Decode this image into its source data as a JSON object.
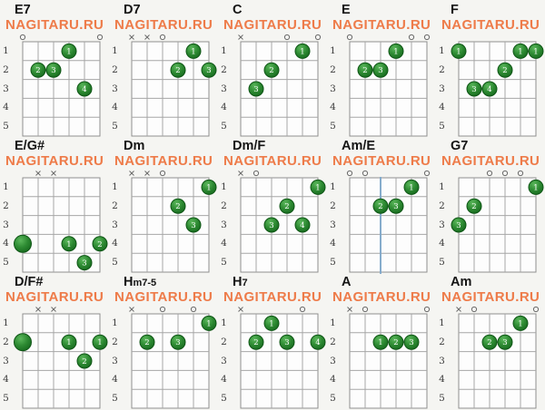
{
  "site": {
    "logo_text": "NAGITARU.RU"
  },
  "colors": {
    "logo_orange": "#ee7b49",
    "title_black": "#141414",
    "dot_green_light": "#5cb85c",
    "dot_green": "#2e8b33",
    "dot_green_dark": "#14661c",
    "dot_border": "#0e5515",
    "grid_line": "#a6a6a6",
    "grid_border": "#8f8f8f",
    "grid_bg": "#fdfdfd",
    "marker_gray": "#6a6a6a",
    "blue_string_line": "#7fa8cc",
    "page_bg": "#f5f5f2"
  },
  "board": {
    "strings": 6,
    "frets": 5,
    "fret_labels": [
      "1",
      "2",
      "3",
      "4",
      "5"
    ]
  },
  "chords": [
    {
      "name_main": "E7",
      "name_sub": "",
      "markers": [
        {
          "string": 6,
          "type": "o"
        },
        {
          "string": 1,
          "type": "o"
        }
      ],
      "dots": [
        {
          "string": 3,
          "fret": 1,
          "finger": "1"
        },
        {
          "string": 5,
          "fret": 2,
          "finger": "2"
        },
        {
          "string": 4,
          "fret": 2,
          "finger": "3"
        },
        {
          "string": 2,
          "fret": 3,
          "finger": "4"
        }
      ],
      "blue_line_string": null
    },
    {
      "name_main": "D7",
      "name_sub": "",
      "markers": [
        {
          "string": 6,
          "type": "x"
        },
        {
          "string": 5,
          "type": "x"
        },
        {
          "string": 4,
          "type": "o"
        }
      ],
      "dots": [
        {
          "string": 2,
          "fret": 1,
          "finger": "1"
        },
        {
          "string": 3,
          "fret": 2,
          "finger": "2"
        },
        {
          "string": 1,
          "fret": 2,
          "finger": "3"
        }
      ],
      "blue_line_string": null
    },
    {
      "name_main": "C",
      "name_sub": "",
      "markers": [
        {
          "string": 6,
          "type": "x"
        },
        {
          "string": 3,
          "type": "o"
        },
        {
          "string": 1,
          "type": "o"
        }
      ],
      "dots": [
        {
          "string": 2,
          "fret": 1,
          "finger": "1"
        },
        {
          "string": 4,
          "fret": 2,
          "finger": "2"
        },
        {
          "string": 5,
          "fret": 3,
          "finger": "3"
        }
      ],
      "blue_line_string": null
    },
    {
      "name_main": "E",
      "name_sub": "",
      "markers": [
        {
          "string": 6,
          "type": "o"
        },
        {
          "string": 2,
          "type": "o"
        },
        {
          "string": 1,
          "type": "o"
        }
      ],
      "dots": [
        {
          "string": 3,
          "fret": 1,
          "finger": "1"
        },
        {
          "string": 5,
          "fret": 2,
          "finger": "2"
        },
        {
          "string": 4,
          "fret": 2,
          "finger": "3"
        }
      ],
      "blue_line_string": null
    },
    {
      "name_main": "F",
      "name_sub": "",
      "markers": [],
      "dots": [
        {
          "string": 6,
          "fret": 1,
          "finger": "1"
        },
        {
          "string": 2,
          "fret": 1,
          "finger": "1"
        },
        {
          "string": 1,
          "fret": 1,
          "finger": "1"
        },
        {
          "string": 3,
          "fret": 2,
          "finger": "2"
        },
        {
          "string": 5,
          "fret": 3,
          "finger": "3"
        },
        {
          "string": 4,
          "fret": 3,
          "finger": "4"
        }
      ],
      "blue_line_string": null
    },
    {
      "name_main": "E/G#",
      "name_sub": "",
      "markers": [
        {
          "string": 5,
          "type": "x"
        },
        {
          "string": 4,
          "type": "x"
        }
      ],
      "dots": [
        {
          "string": 6,
          "fret": 4,
          "finger": ""
        },
        {
          "string": 3,
          "fret": 4,
          "finger": "1"
        },
        {
          "string": 1,
          "fret": 4,
          "finger": "2"
        },
        {
          "string": 2,
          "fret": 5,
          "finger": "3"
        }
      ],
      "blue_line_string": null
    },
    {
      "name_main": "Dm",
      "name_sub": "",
      "markers": [
        {
          "string": 6,
          "type": "x"
        },
        {
          "string": 5,
          "type": "x"
        },
        {
          "string": 4,
          "type": "o"
        }
      ],
      "dots": [
        {
          "string": 1,
          "fret": 1,
          "finger": "1"
        },
        {
          "string": 3,
          "fret": 2,
          "finger": "2"
        },
        {
          "string": 2,
          "fret": 3,
          "finger": "3"
        }
      ],
      "blue_line_string": null
    },
    {
      "name_main": "Dm/F",
      "name_sub": "",
      "markers": [
        {
          "string": 6,
          "type": "x"
        },
        {
          "string": 5,
          "type": "o"
        }
      ],
      "dots": [
        {
          "string": 1,
          "fret": 1,
          "finger": "1"
        },
        {
          "string": 3,
          "fret": 2,
          "finger": "2"
        },
        {
          "string": 4,
          "fret": 3,
          "finger": "3"
        },
        {
          "string": 2,
          "fret": 3,
          "finger": "4"
        }
      ],
      "blue_line_string": null
    },
    {
      "name_main": "Am/E",
      "name_sub": "",
      "markers": [
        {
          "string": 6,
          "type": "o"
        },
        {
          "string": 5,
          "type": "o"
        },
        {
          "string": 1,
          "type": "o"
        }
      ],
      "dots": [
        {
          "string": 2,
          "fret": 1,
          "finger": "1"
        },
        {
          "string": 4,
          "fret": 2,
          "finger": "2"
        },
        {
          "string": 3,
          "fret": 2,
          "finger": "3"
        }
      ],
      "blue_line_string": 4
    },
    {
      "name_main": "G7",
      "name_sub": "",
      "markers": [
        {
          "string": 4,
          "type": "o"
        },
        {
          "string": 3,
          "type": "o"
        },
        {
          "string": 2,
          "type": "o"
        }
      ],
      "dots": [
        {
          "string": 1,
          "fret": 1,
          "finger": "1"
        },
        {
          "string": 5,
          "fret": 2,
          "finger": "2"
        },
        {
          "string": 6,
          "fret": 3,
          "finger": "3"
        }
      ],
      "blue_line_string": null
    },
    {
      "name_main": "D/F#",
      "name_sub": "",
      "markers": [
        {
          "string": 5,
          "type": "x"
        },
        {
          "string": 4,
          "type": "x"
        }
      ],
      "dots": [
        {
          "string": 6,
          "fret": 2,
          "finger": ""
        },
        {
          "string": 3,
          "fret": 2,
          "finger": "1"
        },
        {
          "string": 1,
          "fret": 2,
          "finger": "1"
        },
        {
          "string": 2,
          "fret": 3,
          "finger": "2"
        }
      ],
      "blue_line_string": null
    },
    {
      "name_main": "H",
      "name_sub": "m7-5",
      "markers": [
        {
          "string": 6,
          "type": "x"
        },
        {
          "string": 4,
          "type": "o"
        },
        {
          "string": 2,
          "type": "o"
        }
      ],
      "dots": [
        {
          "string": 1,
          "fret": 1,
          "finger": "1"
        },
        {
          "string": 5,
          "fret": 2,
          "finger": "2"
        },
        {
          "string": 3,
          "fret": 2,
          "finger": "3"
        }
      ],
      "blue_line_string": null
    },
    {
      "name_main": "H",
      "name_sub": "7",
      "markers": [
        {
          "string": 6,
          "type": "x"
        },
        {
          "string": 2,
          "type": "o"
        }
      ],
      "dots": [
        {
          "string": 4,
          "fret": 1,
          "finger": "1"
        },
        {
          "string": 5,
          "fret": 2,
          "finger": "2"
        },
        {
          "string": 3,
          "fret": 2,
          "finger": "3"
        },
        {
          "string": 1,
          "fret": 2,
          "finger": "4"
        }
      ],
      "blue_line_string": null
    },
    {
      "name_main": "A",
      "name_sub": "",
      "markers": [
        {
          "string": 6,
          "type": "x"
        },
        {
          "string": 5,
          "type": "o"
        },
        {
          "string": 1,
          "type": "o"
        }
      ],
      "dots": [
        {
          "string": 4,
          "fret": 2,
          "finger": "1"
        },
        {
          "string": 3,
          "fret": 2,
          "finger": "2"
        },
        {
          "string": 2,
          "fret": 2,
          "finger": "3"
        }
      ],
      "blue_line_string": null
    },
    {
      "name_main": "Am",
      "name_sub": "",
      "markers": [
        {
          "string": 6,
          "type": "x"
        },
        {
          "string": 5,
          "type": "o"
        },
        {
          "string": 1,
          "type": "o"
        }
      ],
      "dots": [
        {
          "string": 2,
          "fret": 1,
          "finger": "1"
        },
        {
          "string": 4,
          "fret": 2,
          "finger": "2"
        },
        {
          "string": 3,
          "fret": 2,
          "finger": "3"
        }
      ],
      "blue_line_string": null
    }
  ]
}
